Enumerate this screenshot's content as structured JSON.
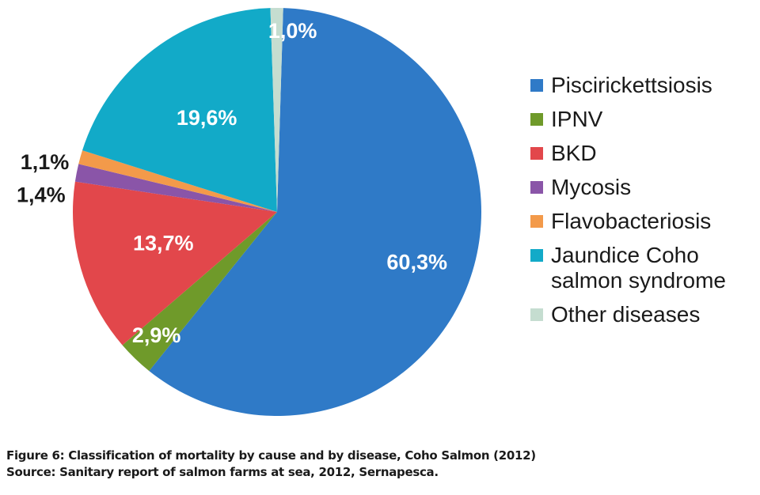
{
  "chart_data": {
    "type": "pie",
    "slices": [
      {
        "label": "Piscirickettsiosis",
        "value": 60.3,
        "display": "60,3%",
        "color": "#2f7ac7"
      },
      {
        "label": "IPNV",
        "value": 2.9,
        "display": "2,9%",
        "color": "#6f9a2a"
      },
      {
        "label": "BKD",
        "value": 13.7,
        "display": "13,7%",
        "color": "#e2474b"
      },
      {
        "label": "Mycosis",
        "value": 1.4,
        "display": "1,4%",
        "color": "#8a55a8"
      },
      {
        "label": "Flavobacteriosis",
        "value": 1.1,
        "display": "1,1%",
        "color": "#f39a4a"
      },
      {
        "label": "Jaundice Coho salmon syndrome",
        "value": 19.6,
        "display": "19,6%",
        "color": "#12aac8"
      },
      {
        "label": "Other diseases",
        "value": 1.0,
        "display": "1,0%",
        "color": "#c5ddd0"
      }
    ],
    "legend_position": "right",
    "legend": [
      {
        "lines": [
          "Piscirickettsiosis"
        ]
      },
      {
        "lines": [
          "IPNV"
        ]
      },
      {
        "lines": [
          "BKD"
        ]
      },
      {
        "lines": [
          "Mycosis"
        ]
      },
      {
        "lines": [
          "Flavobacteriosis"
        ]
      },
      {
        "lines": [
          "Jaundice Coho",
          "salmon syndrome"
        ]
      },
      {
        "lines": [
          "Other diseases"
        ]
      }
    ]
  },
  "caption": {
    "line1": "Figure 6: Classification of mortality by cause and by disease, Coho Salmon (2012)",
    "line2": "Source: Sanitary report of salmon farms at sea, 2012, Sernapesca."
  }
}
